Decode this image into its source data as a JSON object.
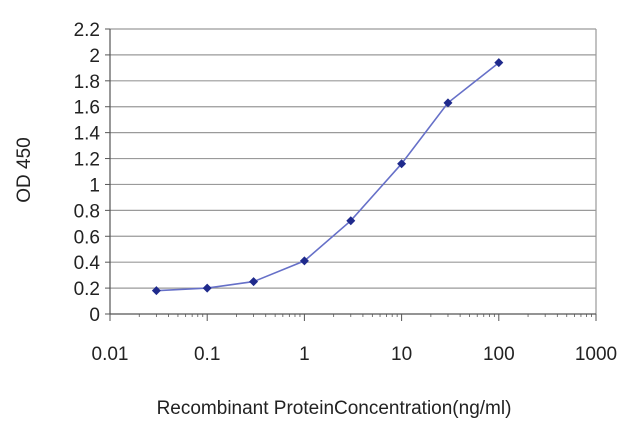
{
  "chart_data": {
    "type": "line",
    "title": "",
    "xlabel": "Recombinant ProteinConcentration(ng/ml)",
    "ylabel": "OD 450",
    "x_scale": "log",
    "xlim": [
      0.01,
      1000
    ],
    "ylim": [
      0,
      2.2
    ],
    "x_ticks": [
      "0.01",
      "0.1",
      "1",
      "10",
      "100",
      "1000"
    ],
    "y_ticks": [
      "0",
      "0.2",
      "0.4",
      "0.6",
      "0.8",
      "1",
      "1.2",
      "1.4",
      "1.6",
      "1.8",
      "2",
      "2.2"
    ],
    "grid": "horizontal",
    "legend": "none",
    "series": [
      {
        "color": "#2b2f9a",
        "x": [
          0.03,
          0.1,
          0.3,
          1,
          3,
          10,
          30,
          100
        ],
        "y": [
          0.18,
          0.2,
          0.25,
          0.41,
          0.72,
          1.16,
          1.63,
          1.94
        ]
      }
    ],
    "colors": {
      "line": "#6670c8",
      "marker": "#1f2a8c",
      "grid": "#9a9a9a",
      "axis": "#555555"
    }
  }
}
